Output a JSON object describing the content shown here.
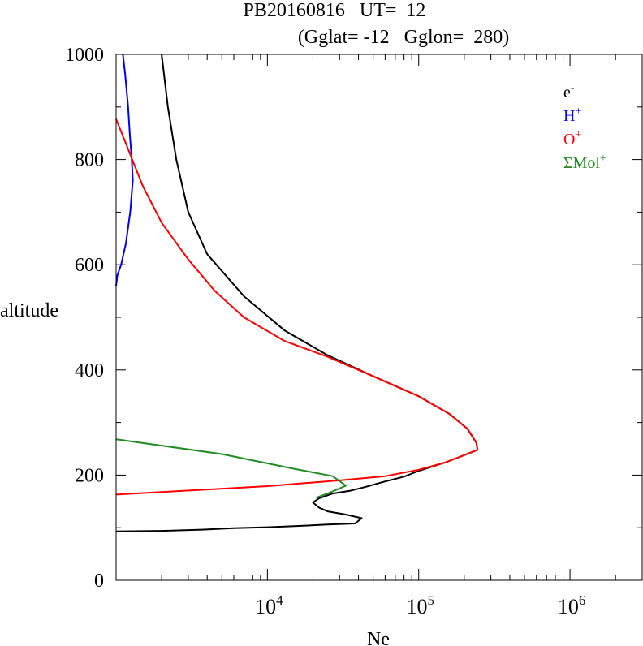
{
  "chart_data": {
    "type": "line",
    "title_line1": "PB20160816   UT=  12",
    "title_line2": "(Gglat= -12   Gglon=  280)",
    "xlabel": "Ne",
    "ylabel": "altitude",
    "x_scale": "log",
    "xlim": [
      1000,
      3000000
    ],
    "ylim": [
      0,
      1000
    ],
    "x_ticks": [
      {
        "value": 10000,
        "base": "10",
        "exp": "4"
      },
      {
        "value": 100000,
        "base": "10",
        "exp": "5"
      },
      {
        "value": 1000000,
        "base": "10",
        "exp": "6"
      }
    ],
    "y_ticks": [
      {
        "value": 0,
        "label": "0"
      },
      {
        "value": 200,
        "label": "200"
      },
      {
        "value": 400,
        "label": "400"
      },
      {
        "value": 600,
        "label": "600"
      },
      {
        "value": 800,
        "label": "800"
      },
      {
        "value": 1000,
        "label": "1000"
      }
    ],
    "grid": false,
    "legend_position": "top-right",
    "series": [
      {
        "key": "e",
        "legend_base": "e",
        "legend_sup": "-",
        "color": "#000000",
        "points": [
          [
            1000,
            93
          ],
          [
            2000,
            94
          ],
          [
            3500,
            96
          ],
          [
            6000,
            99
          ],
          [
            10000,
            101
          ],
          [
            15000,
            103
          ],
          [
            25000,
            106
          ],
          [
            38000,
            108
          ],
          [
            42000,
            118
          ],
          [
            33000,
            125
          ],
          [
            25000,
            131
          ],
          [
            22000,
            138
          ],
          [
            20000,
            148
          ],
          [
            22000,
            156
          ],
          [
            27000,
            165
          ],
          [
            35000,
            170
          ],
          [
            45000,
            178
          ],
          [
            60000,
            188
          ],
          [
            80000,
            197
          ],
          [
            100000,
            208
          ],
          [
            150000,
            224
          ],
          [
            200000,
            238
          ],
          [
            245000,
            248
          ],
          [
            240000,
            262
          ],
          [
            210000,
            288
          ],
          [
            160000,
            316
          ],
          [
            100000,
            350
          ],
          [
            50000,
            388
          ],
          [
            25000,
            428
          ],
          [
            13000,
            475
          ],
          [
            7000,
            540
          ],
          [
            4000,
            620
          ],
          [
            3000,
            700
          ],
          [
            2500,
            800
          ],
          [
            2200,
            900
          ],
          [
            2000,
            1000
          ]
        ]
      },
      {
        "key": "h",
        "legend_base": "H",
        "legend_sup": "+",
        "color": "#0000ff",
        "points": [
          [
            1000,
            560
          ],
          [
            1020,
            580
          ],
          [
            1080,
            600
          ],
          [
            1160,
            640
          ],
          [
            1240,
            700
          ],
          [
            1290,
            760
          ],
          [
            1270,
            800
          ],
          [
            1230,
            850
          ],
          [
            1200,
            900
          ],
          [
            1150,
            960
          ],
          [
            1110,
            1000
          ]
        ]
      },
      {
        "key": "o",
        "legend_base": "O",
        "legend_sup": "+",
        "color": "#ff0000",
        "points": [
          [
            1000,
            163
          ],
          [
            10000,
            179
          ],
          [
            30000,
            190
          ],
          [
            60000,
            198
          ],
          [
            100000,
            210
          ],
          [
            150000,
            224
          ],
          [
            200000,
            238
          ],
          [
            245000,
            248
          ],
          [
            240000,
            262
          ],
          [
            210000,
            288
          ],
          [
            160000,
            316
          ],
          [
            100000,
            350
          ],
          [
            50000,
            388
          ],
          [
            25000,
            425
          ],
          [
            13000,
            455
          ],
          [
            7000,
            500
          ],
          [
            4500,
            550
          ],
          [
            3000,
            610
          ],
          [
            2000,
            680
          ],
          [
            1500,
            750
          ],
          [
            1200,
            820
          ],
          [
            1000,
            877
          ]
        ]
      },
      {
        "key": "mol",
        "legend_base": "ΣMol",
        "legend_sup": "+",
        "color": "#228b22",
        "points": [
          [
            1000,
            268
          ],
          [
            5000,
            240
          ],
          [
            15000,
            212
          ],
          [
            27000,
            198
          ],
          [
            33000,
            180
          ],
          [
            26000,
            167
          ],
          [
            21000,
            157
          ]
        ]
      }
    ]
  }
}
